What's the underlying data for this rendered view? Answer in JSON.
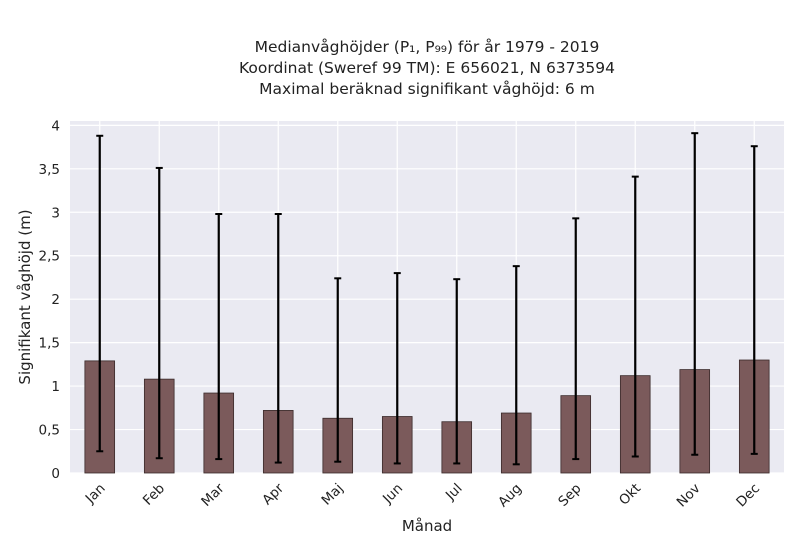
{
  "chart_data": {
    "type": "bar",
    "title_lines": [
      "Medianvåghöjder (P₁, P₉₉) för år 1979 - 2019",
      "Koordinat (Sweref 99 TM): E 656021, N 6373594",
      "Maximal beräknad signifikant våghöjd: 6 m"
    ],
    "xlabel": "Månad",
    "ylabel": "Signifikant våghöjd (m)",
    "categories": [
      "Jan",
      "Feb",
      "Mar",
      "Apr",
      "Maj",
      "Jun",
      "Jul",
      "Aug",
      "Sep",
      "Okt",
      "Nov",
      "Dec"
    ],
    "series": [
      {
        "values": [
          1.29,
          1.08,
          0.92,
          0.72,
          0.63,
          0.65,
          0.59,
          0.69,
          0.89,
          1.12,
          1.19,
          1.3
        ],
        "error_low": [
          0.25,
          0.17,
          0.16,
          0.12,
          0.13,
          0.11,
          0.11,
          0.1,
          0.16,
          0.19,
          0.21,
          0.22
        ],
        "error_high": [
          3.88,
          3.51,
          2.98,
          2.98,
          2.24,
          2.3,
          2.23,
          2.38,
          2.93,
          3.41,
          3.91,
          3.76
        ]
      }
    ],
    "ylim": [
      0,
      4.05
    ],
    "yticks": [
      0,
      0.5,
      1,
      1.5,
      2,
      2.5,
      3,
      3.5,
      4
    ],
    "ytick_labels": [
      "0",
      "0,5",
      "1",
      "1,5",
      "2",
      "2,5",
      "3",
      "3,5",
      "4"
    ],
    "grid": true,
    "colors": {
      "bar": "#7b5a5b",
      "bar_edge": "#3a2a2a",
      "error": "#000000",
      "background": "#eaeaf2",
      "grid": "#ffffff"
    }
  }
}
